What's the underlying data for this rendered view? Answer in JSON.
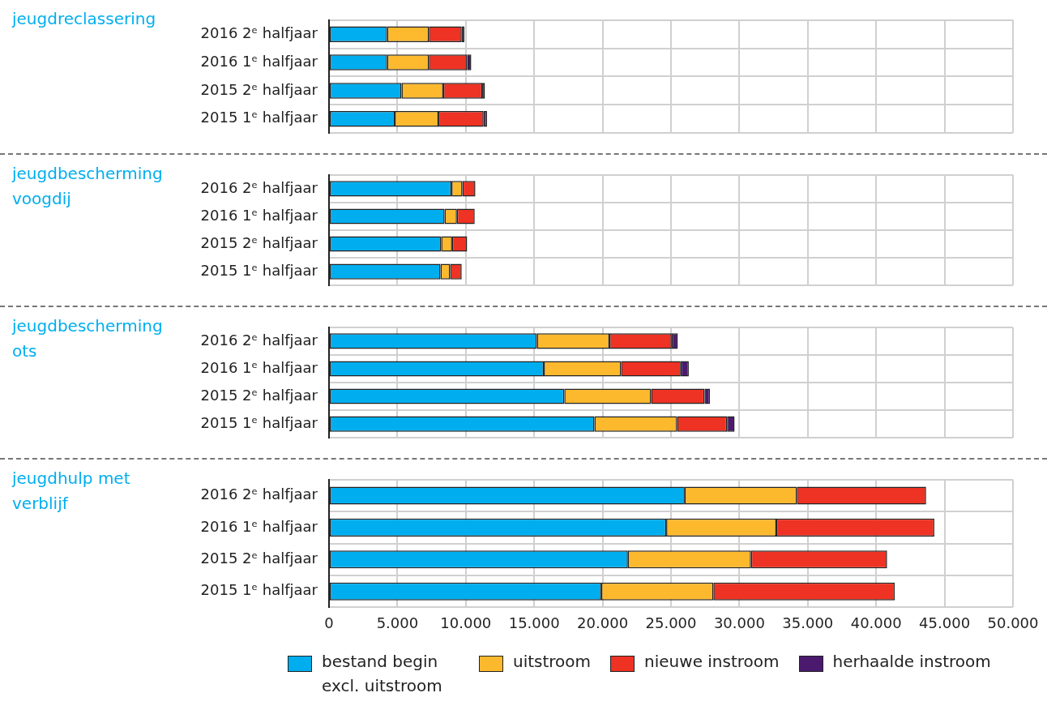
{
  "chart_data": [
    {
      "type": "bar",
      "orientation": "horizontal",
      "stacked": true,
      "title": "jeugdreclassering",
      "categories": [
        "2016 2ᵉ halfjaar",
        "2016 1ᵉ halfjaar",
        "2015 2ᵉ halfjaar",
        "2015 1ᵉ halfjaar"
      ],
      "xlim": [
        0,
        50000
      ],
      "xticks": [
        {
          "value": 0,
          "label": null
        },
        {
          "value": 5000,
          "label": null
        },
        {
          "value": 10000,
          "label": null
        },
        {
          "value": 15000,
          "label": null
        },
        {
          "value": 20000,
          "label": null
        },
        {
          "value": 25000,
          "label": null
        },
        {
          "value": 30000,
          "label": null
        },
        {
          "value": 35000,
          "label": null
        },
        {
          "value": 40000,
          "label": null
        },
        {
          "value": 45000,
          "label": null
        },
        {
          "value": 50000,
          "label": null
        }
      ],
      "tick_labels": "y",
      "grid": true,
      "legend": "bottom",
      "series": [
        {
          "name": "bestand begin excl. uitstroom",
          "color": "#00aeef",
          "values": [
            4250,
            4250,
            5300,
            4800
          ]
        },
        {
          "name": "uitstroom",
          "color": "#fdb92e",
          "values": [
            3050,
            3050,
            3050,
            3200
          ]
        },
        {
          "name": "nieuwe instroom",
          "color": "#ee3224",
          "values": [
            2400,
            2800,
            2850,
            3300
          ]
        },
        {
          "name": "herhaalde instroom",
          "color": "#4b1a6e",
          "values": [
            200,
            300,
            200,
            250
          ]
        }
      ]
    },
    {
      "type": "bar",
      "orientation": "horizontal",
      "stacked": true,
      "title": "jeugdbescherming voogdij",
      "categories": [
        "2016 2ᵉ halfjaar",
        "2016 1ᵉ halfjaar",
        "2015 2ᵉ halfjaar",
        "2015 1ᵉ halfjaar"
      ],
      "xlim": [
        0,
        50000
      ],
      "xticks": [
        {
          "value": 0,
          "label": null
        },
        {
          "value": 5000,
          "label": null
        },
        {
          "value": 10000,
          "label": null
        },
        {
          "value": 15000,
          "label": null
        },
        {
          "value": 20000,
          "label": null
        },
        {
          "value": 25000,
          "label": null
        },
        {
          "value": 30000,
          "label": null
        },
        {
          "value": 35000,
          "label": null
        },
        {
          "value": 40000,
          "label": null
        },
        {
          "value": 45000,
          "label": null
        },
        {
          "value": 50000,
          "label": null
        }
      ],
      "tick_labels": "y",
      "grid": true,
      "series": [
        {
          "color": "#00aeef",
          "values": [
            8950,
            8450,
            8200,
            8150
          ]
        },
        {
          "color": "#fdb92e",
          "values": [
            800,
            900,
            800,
            700
          ]
        },
        {
          "color": "#ee3224",
          "values": [
            950,
            1300,
            1100,
            850
          ]
        },
        {
          "color": "#4b1a6e",
          "values": [
            null,
            null,
            null,
            null
          ]
        }
      ]
    },
    {
      "type": "bar",
      "orientation": "horizontal",
      "stacked": true,
      "title": "jeugdbescherming ots",
      "categories": [
        "2016 2ᵉ halfjaar",
        "2016 1ᵉ halfjaar",
        "2015 2ᵉ halfjaar",
        "2015 1ᵉ halfjaar"
      ],
      "xlim": [
        0,
        50000
      ],
      "xticks": [
        {
          "value": 0,
          "label": null
        },
        {
          "value": 5000,
          "label": null
        },
        {
          "value": 10000,
          "label": null
        },
        {
          "value": 15000,
          "label": null
        },
        {
          "value": 20000,
          "label": null
        },
        {
          "value": 25000,
          "label": null
        },
        {
          "value": 30000,
          "label": null
        },
        {
          "value": 35000,
          "label": null
        },
        {
          "value": 40000,
          "label": null
        },
        {
          "value": 45000,
          "label": null
        },
        {
          "value": 50000,
          "label": null
        }
      ],
      "tick_labels": "y",
      "grid": true,
      "series": [
        {
          "color": "#00aeef",
          "values": [
            15200,
            15700,
            17200,
            19400
          ]
        },
        {
          "color": "#fdb92e",
          "values": [
            5300,
            5650,
            6350,
            6050
          ]
        },
        {
          "color": "#ee3224",
          "values": [
            4550,
            4350,
            3900,
            3650
          ]
        },
        {
          "color": "#4b1a6e",
          "values": [
            450,
            600,
            400,
            550
          ]
        }
      ]
    },
    {
      "type": "bar",
      "orientation": "horizontal",
      "stacked": true,
      "title": "jeugdhulp met verblijf",
      "categories": [
        "2016 2ᵉ halfjaar",
        "2016 1ᵉ halfjaar",
        "2015 2ᵉ halfjaar",
        "2015 1ᵉ halfjaar"
      ],
      "xlim": [
        0,
        50000
      ],
      "xticks": [
        0,
        {
          "value": 5000,
          "label": "5.000"
        },
        {
          "value": 10000,
          "label": "10.000"
        },
        {
          "value": 15000,
          "label": "15.000"
        },
        {
          "value": 20000,
          "label": "20.000"
        },
        {
          "value": 25000,
          "label": "25.000"
        },
        {
          "value": 30000,
          "label": "30.000"
        },
        {
          "value": 35000,
          "label": "35.000"
        },
        {
          "value": 40000,
          "label": "40.000"
        },
        {
          "value": 45000,
          "label": "45.000"
        },
        {
          "value": 50000,
          "label": "50.000"
        }
      ],
      "grid": true,
      "series": [
        {
          "color": "#00aeef",
          "values": [
            26000,
            24650,
            21850,
            19900
          ]
        },
        {
          "color": "#fdb92e",
          "values": [
            8200,
            8050,
            9000,
            8200
          ]
        },
        {
          "color": "#ee3224",
          "values": [
            9450,
            11550,
            9950,
            13250
          ]
        },
        {
          "color": "#4b1a6e",
          "values": [
            null,
            null,
            null,
            null
          ]
        }
      ]
    }
  ]
}
